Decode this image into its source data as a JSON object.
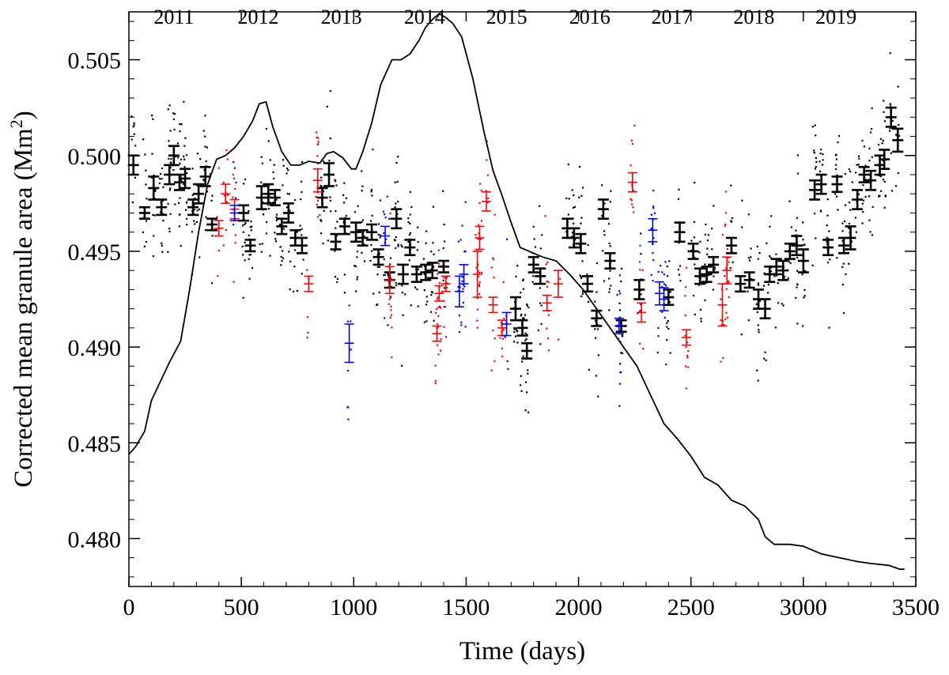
{
  "chart_data": {
    "type": "scatter",
    "title": "",
    "xlabel": "Time (days)",
    "ylabel": "Corrected mean granule area (Mm²)",
    "ylabel_parts": {
      "base": "Corrected mean granule area (Mm",
      "sup": "2",
      "end": ")"
    },
    "xlim": [
      0,
      3500
    ],
    "ylim": [
      0.4775,
      0.5075
    ],
    "x_ticks": [
      0,
      500,
      1000,
      1500,
      2000,
      2500,
      3000,
      3500
    ],
    "x_tick_labels": [
      "0",
      "500",
      "1000",
      "1500",
      "2000",
      "2500",
      "3000",
      "3500"
    ],
    "y_ticks": [
      0.48,
      0.485,
      0.49,
      0.495,
      0.5,
      0.505
    ],
    "y_tick_labels": [
      "0.480",
      "0.485",
      "0.490",
      "0.495",
      "0.500",
      "0.505"
    ],
    "top_axis": {
      "labels": [
        "2011",
        "2012",
        "2013",
        "2014",
        "2015",
        "2016",
        "2017",
        "2018",
        "2019"
      ],
      "positions": [
        200,
        575,
        945,
        1315,
        1680,
        2050,
        2415,
        2780,
        3145
      ]
    },
    "grid": false,
    "legend": "none",
    "series": [
      {
        "style": "black-errorbar",
        "color": "#000000",
        "points": [
          [
            20,
            0.4995,
            0.0005
          ],
          [
            70,
            0.497,
            0.0003
          ],
          [
            110,
            0.4983,
            0.0006
          ],
          [
            145,
            0.4973,
            0.0004
          ],
          [
            180,
            0.499,
            0.0005
          ],
          [
            200,
            0.5,
            0.0005
          ],
          [
            225,
            0.4986,
            0.0004
          ],
          [
            250,
            0.4988,
            0.0005
          ],
          [
            285,
            0.4973,
            0.0004
          ],
          [
            310,
            0.498,
            0.0005
          ],
          [
            340,
            0.4989,
            0.0005
          ],
          [
            370,
            0.4964,
            0.0003
          ],
          [
            510,
            0.497,
            0.0004
          ],
          [
            540,
            0.4953,
            0.0003
          ],
          [
            590,
            0.4978,
            0.0006
          ],
          [
            620,
            0.498,
            0.0005
          ],
          [
            650,
            0.4978,
            0.0004
          ],
          [
            680,
            0.4963,
            0.0004
          ],
          [
            710,
            0.497,
            0.0005
          ],
          [
            740,
            0.4957,
            0.0004
          ],
          [
            770,
            0.4953,
            0.0004
          ],
          [
            860,
            0.4978,
            0.0005
          ],
          [
            890,
            0.499,
            0.0006
          ],
          [
            920,
            0.4955,
            0.0004
          ],
          [
            960,
            0.4963,
            0.0004
          ],
          [
            1010,
            0.496,
            0.0005
          ],
          [
            1040,
            0.4957,
            0.0004
          ],
          [
            1080,
            0.496,
            0.0004
          ],
          [
            1110,
            0.4947,
            0.0004
          ],
          [
            1160,
            0.4935,
            0.0004
          ],
          [
            1190,
            0.4967,
            0.0005
          ],
          [
            1220,
            0.4938,
            0.0005
          ],
          [
            1250,
            0.4952,
            0.0004
          ],
          [
            1280,
            0.4938,
            0.0004
          ],
          [
            1320,
            0.4939,
            0.0004
          ],
          [
            1350,
            0.494,
            0.0004
          ],
          [
            1400,
            0.4942,
            0.0003
          ],
          [
            1720,
            0.492,
            0.0006
          ],
          [
            1750,
            0.491,
            0.0004
          ],
          [
            1770,
            0.4898,
            0.0004
          ],
          [
            1800,
            0.4943,
            0.0004
          ],
          [
            1830,
            0.4937,
            0.0004
          ],
          [
            1950,
            0.4962,
            0.0005
          ],
          [
            1980,
            0.4957,
            0.0005
          ],
          [
            2010,
            0.4954,
            0.0005
          ],
          [
            2040,
            0.4933,
            0.0004
          ],
          [
            2080,
            0.4915,
            0.0004
          ],
          [
            2110,
            0.4972,
            0.0005
          ],
          [
            2140,
            0.4945,
            0.0004
          ],
          [
            2190,
            0.4911,
            0.0003
          ],
          [
            2270,
            0.493,
            0.0005
          ],
          [
            2400,
            0.4926,
            0.0004
          ],
          [
            2450,
            0.496,
            0.0005
          ],
          [
            2510,
            0.495,
            0.0004
          ],
          [
            2540,
            0.4937,
            0.0004
          ],
          [
            2570,
            0.4938,
            0.0004
          ],
          [
            2600,
            0.4943,
            0.0004
          ],
          [
            2680,
            0.4953,
            0.0004
          ],
          [
            2720,
            0.4933,
            0.0004
          ],
          [
            2760,
            0.4935,
            0.0004
          ],
          [
            2800,
            0.4925,
            0.0005
          ],
          [
            2830,
            0.492,
            0.0005
          ],
          [
            2850,
            0.4938,
            0.0004
          ],
          [
            2880,
            0.4942,
            0.0004
          ],
          [
            2910,
            0.494,
            0.0005
          ],
          [
            2940,
            0.495,
            0.0004
          ],
          [
            2970,
            0.4953,
            0.0005
          ],
          [
            3000,
            0.4945,
            0.0006
          ],
          [
            3050,
            0.4982,
            0.0005
          ],
          [
            3080,
            0.4985,
            0.0005
          ],
          [
            3110,
            0.4952,
            0.0004
          ],
          [
            3150,
            0.4985,
            0.0004
          ],
          [
            3180,
            0.4953,
            0.0004
          ],
          [
            3210,
            0.4957,
            0.0006
          ],
          [
            3240,
            0.4977,
            0.0005
          ],
          [
            3270,
            0.499,
            0.0004
          ],
          [
            3300,
            0.4987,
            0.0005
          ],
          [
            3340,
            0.4995,
            0.0005
          ],
          [
            3360,
            0.4998,
            0.0005
          ],
          [
            3390,
            0.502,
            0.0005
          ],
          [
            3420,
            0.5008,
            0.0006
          ]
        ]
      },
      {
        "style": "red-errorbar",
        "color": "#ff0000",
        "points": [
          [
            400,
            0.4962,
            0.0004
          ],
          [
            430,
            0.498,
            0.0005
          ],
          [
            470,
            0.4972,
            0.0005
          ],
          [
            800,
            0.4933,
            0.0004
          ],
          [
            840,
            0.4987,
            0.0006
          ],
          [
            1160,
            0.4935,
            0.0007
          ],
          [
            1370,
            0.4907,
            0.0004
          ],
          [
            1380,
            0.4928,
            0.0004
          ],
          [
            1410,
            0.4933,
            0.0004
          ],
          [
            1550,
            0.4938,
            0.0012
          ],
          [
            1560,
            0.4957,
            0.0006
          ],
          [
            1590,
            0.4976,
            0.0005
          ],
          [
            1620,
            0.4922,
            0.0004
          ],
          [
            1660,
            0.491,
            0.0004
          ],
          [
            1860,
            0.4923,
            0.0004
          ],
          [
            1910,
            0.4933,
            0.0007
          ],
          [
            2240,
            0.4986,
            0.0005
          ],
          [
            2280,
            0.4918,
            0.0005
          ],
          [
            2480,
            0.4905,
            0.0004
          ],
          [
            2640,
            0.4922,
            0.0011
          ],
          [
            2660,
            0.494,
            0.0007
          ]
        ]
      },
      {
        "style": "blue-errorbar",
        "color": "#0000ff",
        "points": [
          [
            470,
            0.497,
            0.0004
          ],
          [
            980,
            0.4902,
            0.001
          ],
          [
            1140,
            0.4958,
            0.0005
          ],
          [
            1470,
            0.4929,
            0.0008
          ],
          [
            1490,
            0.4938,
            0.0005
          ],
          [
            1680,
            0.4912,
            0.0006
          ],
          [
            2180,
            0.4911,
            0.0004
          ],
          [
            2330,
            0.4961,
            0.0006
          ],
          [
            2360,
            0.4928,
            0.0006
          ],
          [
            2380,
            0.4925,
            0.0006
          ]
        ]
      },
      {
        "style": "line",
        "color": "#000000",
        "points": [
          [
            0,
            0.4844
          ],
          [
            30,
            0.4848
          ],
          [
            70,
            0.4856
          ],
          [
            100,
            0.4872
          ],
          [
            140,
            0.4882
          ],
          [
            180,
            0.4892
          ],
          [
            230,
            0.4903
          ],
          [
            270,
            0.493
          ],
          [
            310,
            0.496
          ],
          [
            350,
            0.4985
          ],
          [
            390,
            0.4998
          ],
          [
            430,
            0.5
          ],
          [
            470,
            0.5004
          ],
          [
            510,
            0.501
          ],
          [
            550,
            0.5018
          ],
          [
            580,
            0.5027
          ],
          [
            610,
            0.5028
          ],
          [
            640,
            0.5015
          ],
          [
            680,
            0.5002
          ],
          [
            720,
            0.4995
          ],
          [
            760,
            0.4995
          ],
          [
            800,
            0.4997
          ],
          [
            850,
            0.4996
          ],
          [
            880,
            0.5001
          ],
          [
            910,
            0.5002
          ],
          [
            950,
            0.4999
          ],
          [
            990,
            0.4993
          ],
          [
            1010,
            0.4993
          ],
          [
            1040,
            0.5002
          ],
          [
            1080,
            0.5017
          ],
          [
            1120,
            0.5037
          ],
          [
            1170,
            0.505
          ],
          [
            1210,
            0.505
          ],
          [
            1250,
            0.5053
          ],
          [
            1290,
            0.506
          ],
          [
            1320,
            0.5067
          ],
          [
            1350,
            0.5071
          ],
          [
            1380,
            0.5074
          ],
          [
            1410,
            0.5072
          ],
          [
            1440,
            0.5069
          ],
          [
            1480,
            0.5062
          ],
          [
            1530,
            0.504
          ],
          [
            1580,
            0.5012
          ],
          [
            1620,
            0.4992
          ],
          [
            1660,
            0.4979
          ],
          [
            1700,
            0.4965
          ],
          [
            1740,
            0.4952
          ],
          [
            1780,
            0.495
          ],
          [
            1840,
            0.4947
          ],
          [
            1900,
            0.4945
          ],
          [
            1960,
            0.4938
          ],
          [
            2020,
            0.493
          ],
          [
            2080,
            0.492
          ],
          [
            2140,
            0.491
          ],
          [
            2200,
            0.49
          ],
          [
            2260,
            0.489
          ],
          [
            2320,
            0.4875
          ],
          [
            2380,
            0.486
          ],
          [
            2440,
            0.4852
          ],
          [
            2500,
            0.4843
          ],
          [
            2560,
            0.4832
          ],
          [
            2620,
            0.4828
          ],
          [
            2680,
            0.482
          ],
          [
            2740,
            0.4817
          ],
          [
            2800,
            0.481
          ],
          [
            2830,
            0.4801
          ],
          [
            2870,
            0.4797
          ],
          [
            2940,
            0.4797
          ],
          [
            3000,
            0.4796
          ],
          [
            3080,
            0.4792
          ],
          [
            3160,
            0.479
          ],
          [
            3240,
            0.4788
          ],
          [
            3300,
            0.4787
          ],
          [
            3380,
            0.4786
          ],
          [
            3430,
            0.4784
          ],
          [
            3450,
            0.4784
          ]
        ]
      },
      {
        "style": "black-dots",
        "color": "#000000",
        "seed": 7,
        "count": 900,
        "note": "individual daily measurements scattered around the black series"
      },
      {
        "style": "red-dots",
        "color": "#ff0000",
        "seed": 11,
        "count": 220
      },
      {
        "style": "blue-dots",
        "color": "#0000ff",
        "seed": 13,
        "count": 90
      }
    ]
  }
}
